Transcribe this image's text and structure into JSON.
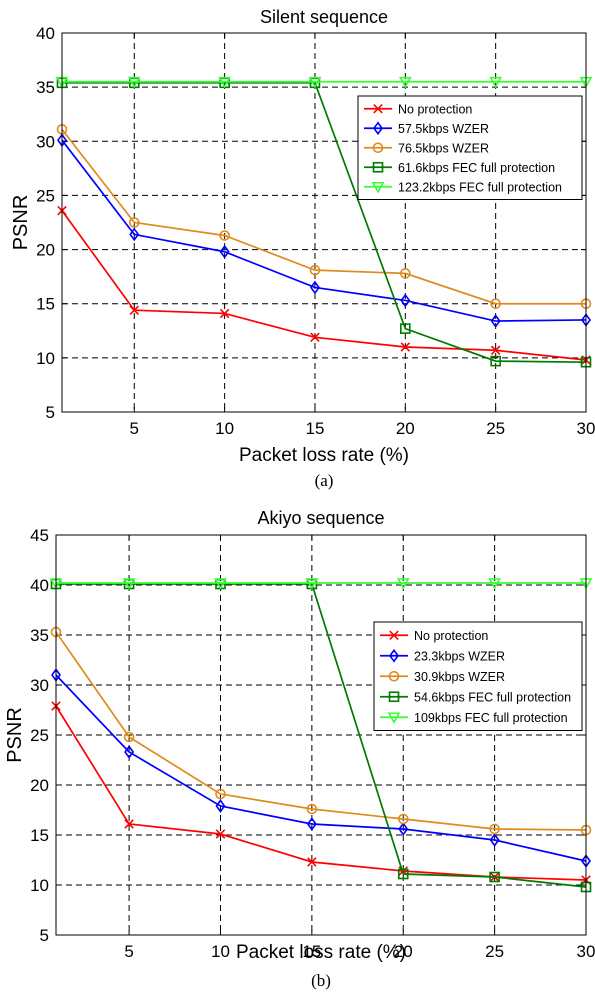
{
  "chart_data": [
    {
      "type": "line",
      "title": "Silent sequence",
      "caption": "(a)",
      "xlabel": "Packet loss rate (%)",
      "ylabel": "PSNR",
      "x": [
        1,
        5,
        10,
        15,
        20,
        25,
        30
      ],
      "xlim": [
        1,
        30
      ],
      "ylim": [
        5,
        40
      ],
      "xticks": [
        5,
        10,
        15,
        20,
        25,
        30
      ],
      "yticks": [
        5,
        10,
        15,
        20,
        25,
        30,
        35,
        40
      ],
      "grid": true,
      "legend_position": "top-right",
      "series": [
        {
          "name": "No protection",
          "color": "#ff0000",
          "marker": "x",
          "values": [
            23.6,
            14.4,
            14.1,
            11.9,
            11.0,
            10.7,
            9.8
          ]
        },
        {
          "name": "57.5kbps WZER",
          "color": "#0000ff",
          "marker": "diamond",
          "values": [
            30.1,
            21.4,
            19.8,
            16.5,
            15.3,
            13.4,
            13.5
          ]
        },
        {
          "name": "76.5kbps WZER",
          "color": "#e08a1e",
          "marker": "circle",
          "values": [
            31.1,
            22.5,
            21.3,
            18.1,
            17.8,
            15.0,
            15.0
          ]
        },
        {
          "name": "61.6kbps FEC full protection",
          "color": "#007a00",
          "marker": "square",
          "values": [
            35.4,
            35.4,
            35.4,
            35.4,
            12.7,
            9.7,
            9.6
          ]
        },
        {
          "name": "123.2kbps FEC full protection",
          "color": "#33ff33",
          "marker": "triangle-down",
          "values": [
            35.5,
            35.5,
            35.5,
            35.5,
            35.5,
            35.5,
            35.5
          ]
        }
      ]
    },
    {
      "type": "line",
      "title": "Akiyo sequence",
      "caption": "(b)",
      "xlabel": "Packet loss rate (%)",
      "ylabel": "PSNR",
      "x": [
        1,
        5,
        10,
        15,
        20,
        25,
        30
      ],
      "xlim": [
        1,
        30
      ],
      "ylim": [
        5,
        45
      ],
      "xticks": [
        5,
        10,
        15,
        20,
        25,
        30
      ],
      "yticks": [
        5,
        10,
        15,
        20,
        25,
        30,
        35,
        40,
        45
      ],
      "grid": true,
      "legend_position": "right",
      "series": [
        {
          "name": "No protection",
          "color": "#ff0000",
          "marker": "x",
          "values": [
            27.9,
            16.1,
            15.1,
            12.3,
            11.4,
            10.8,
            10.5
          ]
        },
        {
          "name": "23.3kbps WZER",
          "color": "#0000ff",
          "marker": "diamond",
          "values": [
            31.0,
            23.3,
            17.9,
            16.1,
            15.6,
            14.5,
            12.4
          ]
        },
        {
          "name": "30.9kbps WZER",
          "color": "#e08a1e",
          "marker": "circle",
          "values": [
            35.3,
            24.8,
            19.1,
            17.6,
            16.6,
            15.6,
            15.5
          ]
        },
        {
          "name": "54.6kbps FEC full protection",
          "color": "#007a00",
          "marker": "square",
          "values": [
            40.1,
            40.1,
            40.1,
            40.1,
            11.1,
            10.8,
            9.8
          ]
        },
        {
          "name": "109kbps FEC full protection",
          "color": "#33ff33",
          "marker": "triangle-down",
          "values": [
            40.2,
            40.2,
            40.2,
            40.2,
            40.2,
            40.2,
            40.2
          ]
        }
      ]
    }
  ]
}
